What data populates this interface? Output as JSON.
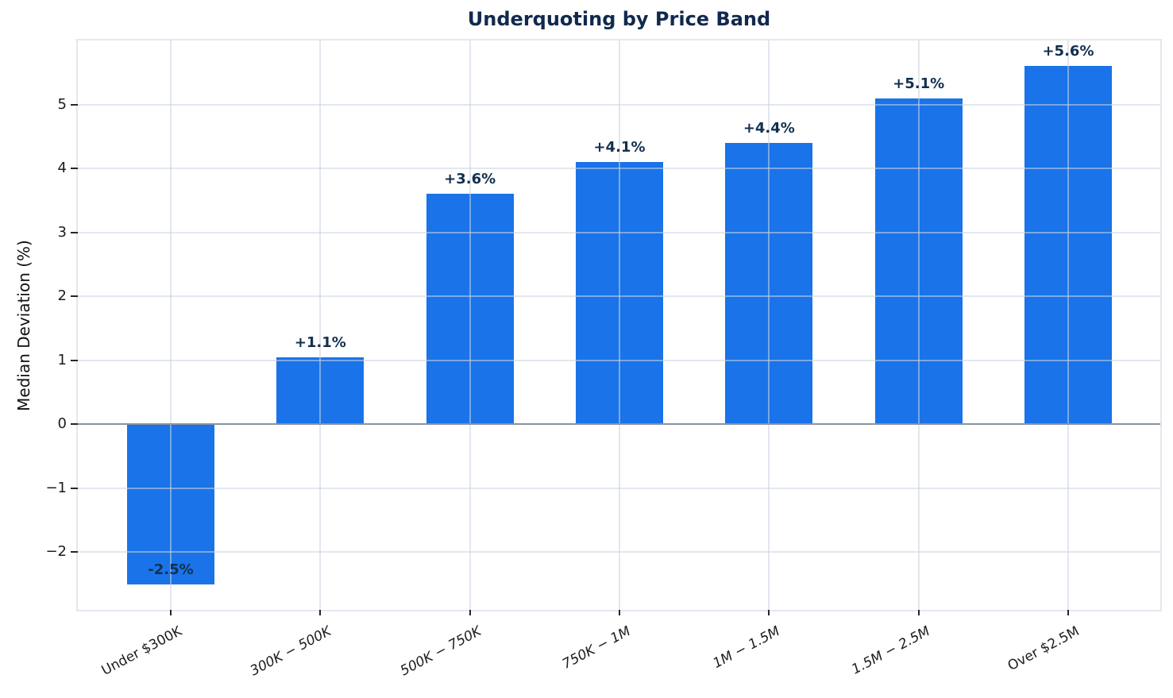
{
  "chart_data": {
    "type": "bar",
    "title": "Underquoting by Price Band",
    "xlabel": "",
    "ylabel": "Median Deviation (%)",
    "categories": [
      "Under $300K",
      "300K − 500K",
      "500K − 750K",
      "750K − 1M",
      "1M − 1.5M",
      "1.5M − 2.5M",
      "Over $2.5M"
    ],
    "category_styles": [
      "normal",
      "italic",
      "italic",
      "italic",
      "italic",
      "italic",
      "normal"
    ],
    "values": [
      -2.5,
      1.05,
      3.6,
      4.1,
      4.4,
      5.1,
      5.6
    ],
    "bar_labels": [
      "-2.5%",
      "+1.1%",
      "+3.6%",
      "+4.1%",
      "+4.4%",
      "+5.1%",
      "+5.6%"
    ],
    "yticks": [
      -2,
      -1,
      0,
      1,
      2,
      3,
      4,
      5
    ],
    "ylim": [
      -2.95,
      6.0
    ],
    "grid": true,
    "legend": "none",
    "colors": {
      "bar": "#1a73e8",
      "title": "#12294e",
      "bar_label": "#12304f",
      "grid": "rgba(203,212,226,0.55)",
      "zero_line": "#8a93a1",
      "tick_mark": "#262626",
      "tick_label": "#1c1c1c",
      "spine": "#e3e8ef",
      "background": "#ffffff"
    }
  }
}
